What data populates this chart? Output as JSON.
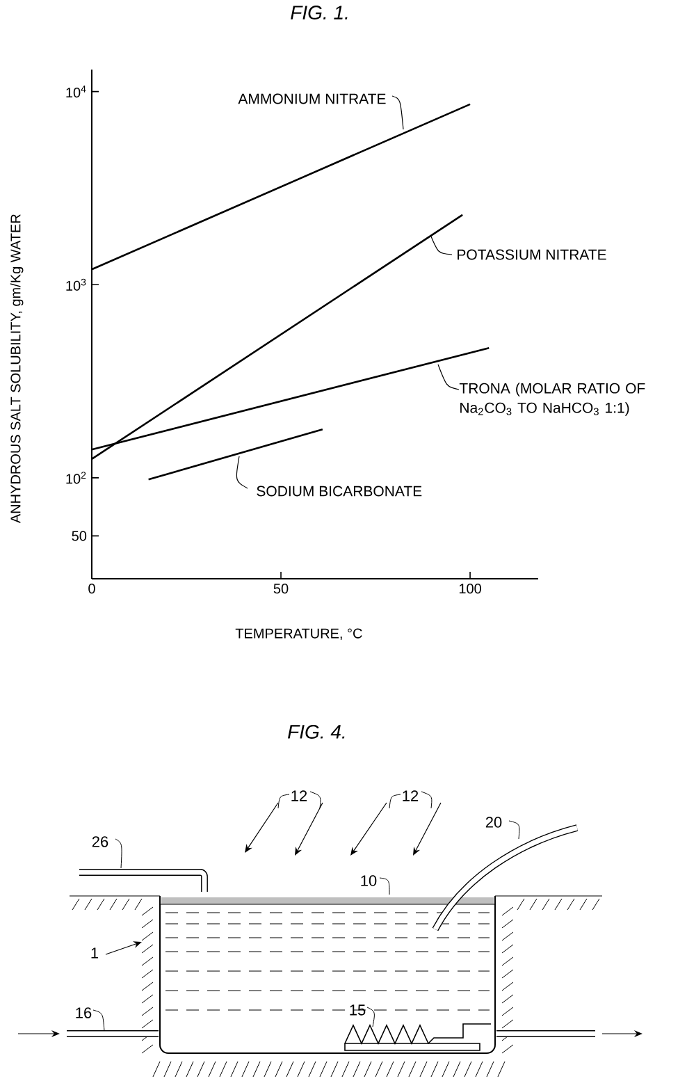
{
  "chart_data": [
    {
      "type": "line",
      "title": "FIG. 1.",
      "xlabel": "TEMPERATURE, °C",
      "ylabel": "ANHYDROUS SALT SOLUBILITY, gm/Kg WATER",
      "log": "y",
      "xlim": [
        0,
        118
      ],
      "ylim": [
        30,
        13000
      ],
      "xticks": [
        0,
        50,
        100
      ],
      "yticks": [
        50,
        {
          "value": 100,
          "label": "10$^{2}$"
        },
        {
          "value": 1000,
          "label": "10$^{3}$"
        },
        {
          "value": 10000,
          "label": "10$^{4}$"
        }
      ],
      "series": [
        {
          "name": "AMMONIUM NITRATE",
          "color": "#000000",
          "x": [
            0,
            100
          ],
          "values": [
            1200,
            8600
          ]
        },
        {
          "name": "POTASSIUM NITRATE",
          "color": "#000000",
          "x": [
            0,
            98
          ],
          "values": [
            125,
            2300
          ]
        },
        {
          "name": "TRONA (MOLAR RATIO OF Na$_{2}$CO$_{3}$ TO NaHCO$_{3}$ 1:1)",
          "color": "#000000",
          "x": [
            0,
            105
          ],
          "values": [
            140,
            470
          ]
        },
        {
          "name": "SODIUM BICARBONATE",
          "color": "#000000",
          "x": [
            15,
            61
          ],
          "values": [
            98,
            178
          ]
        }
      ]
    },
    {
      "type": "other",
      "title": "FIG. 4.",
      "annotations": [
        "12",
        "12",
        "20",
        "26",
        "10",
        "1",
        "16",
        "15"
      ]
    }
  ]
}
